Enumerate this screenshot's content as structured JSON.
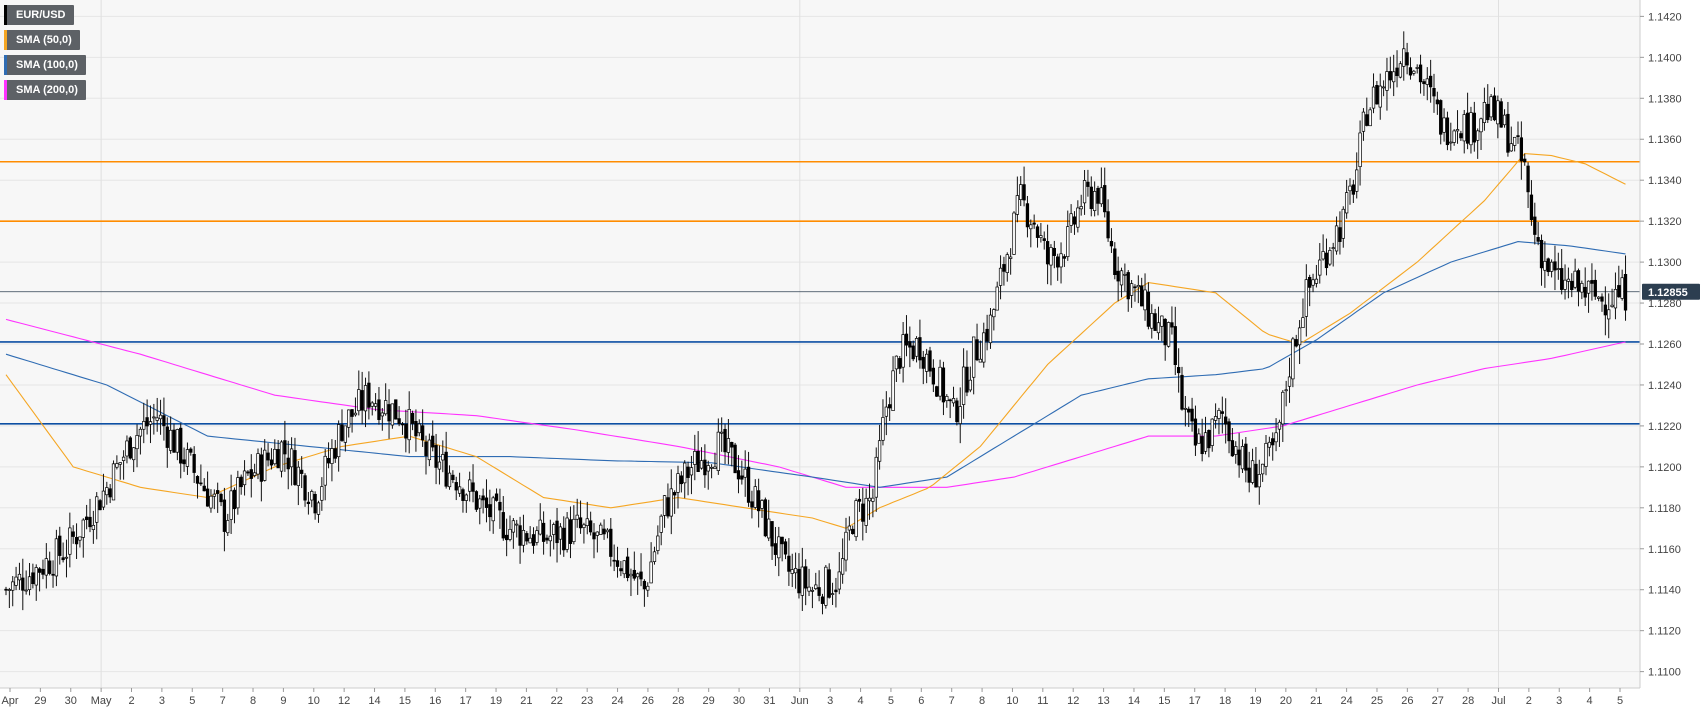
{
  "chart_data": {
    "type": "candlestick",
    "symbol": "EUR/USD",
    "last_price": "1.12855",
    "ylim": [
      1.1092,
      1.1428
    ],
    "y_ticks": [
      "1.1420",
      "1.1400",
      "1.1380",
      "1.1360",
      "1.1340",
      "1.1320",
      "1.1300",
      "1.1280",
      "1.1260",
      "1.1240",
      "1.1220",
      "1.1200",
      "1.1180",
      "1.1160",
      "1.1140",
      "1.1120",
      "1.1100"
    ],
    "x_ticks": [
      "Apr",
      "29",
      "30",
      "May",
      "2",
      "3",
      "5",
      "7",
      "8",
      "9",
      "10",
      "12",
      "14",
      "15",
      "16",
      "17",
      "19",
      "21",
      "22",
      "23",
      "24",
      "26",
      "28",
      "29",
      "30",
      "31",
      "Jun",
      "3",
      "4",
      "5",
      "6",
      "7",
      "8",
      "10",
      "11",
      "12",
      "13",
      "14",
      "15",
      "17",
      "18",
      "19",
      "20",
      "21",
      "24",
      "25",
      "26",
      "27",
      "28",
      "Jul",
      "2",
      "3",
      "4",
      "5"
    ],
    "legend": [
      {
        "label": "EUR/USD",
        "color": "#000000"
      },
      {
        "label": "SMA (50,0)",
        "color": "#f5a623"
      },
      {
        "label": "SMA (100,0)",
        "color": "#2f6cb3"
      },
      {
        "label": "SMA (200,0)",
        "color": "#ff33ff"
      }
    ],
    "horizontal_lines": [
      {
        "value": 1.1349,
        "color": "#ff8c00"
      },
      {
        "value": 1.132,
        "color": "#ff8c00"
      },
      {
        "value": 1.1261,
        "color": "#0d4fa3"
      },
      {
        "value": 1.1221,
        "color": "#0d4fa3"
      }
    ],
    "close_anchors": [
      [
        0,
        1.114
      ],
      [
        18,
        1.116
      ],
      [
        30,
        1.119
      ],
      [
        38,
        1.1215
      ],
      [
        45,
        1.1225
      ],
      [
        55,
        1.12
      ],
      [
        65,
        1.1175
      ],
      [
        72,
        1.1195
      ],
      [
        82,
        1.121
      ],
      [
        92,
        1.1185
      ],
      [
        100,
        1.122
      ],
      [
        108,
        1.1235
      ],
      [
        118,
        1.1225
      ],
      [
        126,
        1.1205
      ],
      [
        134,
        1.1195
      ],
      [
        142,
        1.118
      ],
      [
        150,
        1.117
      ],
      [
        160,
        1.1165
      ],
      [
        170,
        1.117
      ],
      [
        180,
        1.116
      ],
      [
        190,
        1.114
      ],
      [
        196,
        1.118
      ],
      [
        204,
        1.12
      ],
      [
        212,
        1.121
      ],
      [
        218,
        1.12
      ],
      [
        224,
        1.118
      ],
      [
        232,
        1.115
      ],
      [
        240,
        1.114
      ],
      [
        248,
        1.1145
      ],
      [
        252,
        1.1175
      ],
      [
        258,
        1.1185
      ],
      [
        262,
        1.123
      ],
      [
        266,
        1.1255
      ],
      [
        272,
        1.126
      ],
      [
        278,
        1.124
      ],
      [
        282,
        1.1225
      ],
      [
        288,
        1.1255
      ],
      [
        293,
        1.127
      ],
      [
        298,
        1.1305
      ],
      [
        302,
        1.133
      ],
      [
        306,
        1.132
      ],
      [
        310,
        1.13
      ],
      [
        316,
        1.131
      ],
      [
        320,
        1.133
      ],
      [
        325,
        1.1335
      ],
      [
        330,
        1.13
      ],
      [
        336,
        1.1285
      ],
      [
        342,
        1.127
      ],
      [
        347,
        1.126
      ],
      [
        350,
        1.123
      ],
      [
        354,
        1.121
      ],
      [
        358,
        1.1215
      ],
      [
        362,
        1.1225
      ],
      [
        366,
        1.121
      ],
      [
        370,
        1.1195
      ],
      [
        374,
        1.12
      ],
      [
        378,
        1.121
      ],
      [
        382,
        1.125
      ],
      [
        386,
        1.128
      ],
      [
        390,
        1.1295
      ],
      [
        394,
        1.131
      ],
      [
        398,
        1.132
      ],
      [
        402,
        1.1345
      ],
      [
        405,
        1.1375
      ],
      [
        409,
        1.1385
      ],
      [
        413,
        1.1395
      ],
      [
        416,
        1.1405
      ],
      [
        420,
        1.1395
      ],
      [
        424,
        1.138
      ],
      [
        428,
        1.1365
      ],
      [
        432,
        1.137
      ],
      [
        436,
        1.1365
      ],
      [
        440,
        1.1375
      ],
      [
        444,
        1.137
      ],
      [
        448,
        1.136
      ],
      [
        452,
        1.1345
      ],
      [
        454,
        1.132
      ],
      [
        458,
        1.13
      ],
      [
        462,
        1.129
      ],
      [
        468,
        1.1287
      ],
      [
        475,
        1.1282
      ],
      [
        482,
        1.1285
      ]
    ],
    "sma50_points": [
      [
        0,
        1.1245
      ],
      [
        20,
        1.12
      ],
      [
        40,
        1.119
      ],
      [
        60,
        1.1185
      ],
      [
        80,
        1.12
      ],
      [
        100,
        1.121
      ],
      [
        120,
        1.1215
      ],
      [
        140,
        1.1205
      ],
      [
        160,
        1.1185
      ],
      [
        180,
        1.118
      ],
      [
        200,
        1.1185
      ],
      [
        220,
        1.118
      ],
      [
        240,
        1.1175
      ],
      [
        250,
        1.117
      ],
      [
        260,
        1.118
      ],
      [
        275,
        1.119
      ],
      [
        290,
        1.121
      ],
      [
        310,
        1.125
      ],
      [
        330,
        1.128
      ],
      [
        340,
        1.129
      ],
      [
        360,
        1.1285
      ],
      [
        375,
        1.1265
      ],
      [
        385,
        1.126
      ],
      [
        400,
        1.1275
      ],
      [
        420,
        1.13
      ],
      [
        440,
        1.133
      ],
      [
        452,
        1.1353
      ],
      [
        460,
        1.1352
      ],
      [
        470,
        1.1348
      ],
      [
        482,
        1.1338
      ]
    ],
    "sma100_points": [
      [
        0,
        1.1255
      ],
      [
        30,
        1.124
      ],
      [
        60,
        1.1215
      ],
      [
        90,
        1.121
      ],
      [
        120,
        1.1205
      ],
      [
        150,
        1.1205
      ],
      [
        180,
        1.1203
      ],
      [
        210,
        1.1202
      ],
      [
        240,
        1.1195
      ],
      [
        260,
        1.119
      ],
      [
        280,
        1.1195
      ],
      [
        300,
        1.1215
      ],
      [
        320,
        1.1235
      ],
      [
        340,
        1.1243
      ],
      [
        360,
        1.1245
      ],
      [
        375,
        1.1248
      ],
      [
        390,
        1.1262
      ],
      [
        410,
        1.1285
      ],
      [
        430,
        1.13
      ],
      [
        450,
        1.131
      ],
      [
        465,
        1.1308
      ],
      [
        482,
        1.1304
      ]
    ],
    "sma200_points": [
      [
        0,
        1.1272
      ],
      [
        40,
        1.1255
      ],
      [
        80,
        1.1235
      ],
      [
        110,
        1.1228
      ],
      [
        140,
        1.1225
      ],
      [
        170,
        1.1218
      ],
      [
        200,
        1.121
      ],
      [
        230,
        1.12
      ],
      [
        250,
        1.119
      ],
      [
        280,
        1.119
      ],
      [
        300,
        1.1195
      ],
      [
        320,
        1.1205
      ],
      [
        340,
        1.1215
      ],
      [
        360,
        1.1215
      ],
      [
        380,
        1.122
      ],
      [
        400,
        1.123
      ],
      [
        420,
        1.124
      ],
      [
        440,
        1.1248
      ],
      [
        460,
        1.1253
      ],
      [
        482,
        1.1261
      ]
    ]
  }
}
